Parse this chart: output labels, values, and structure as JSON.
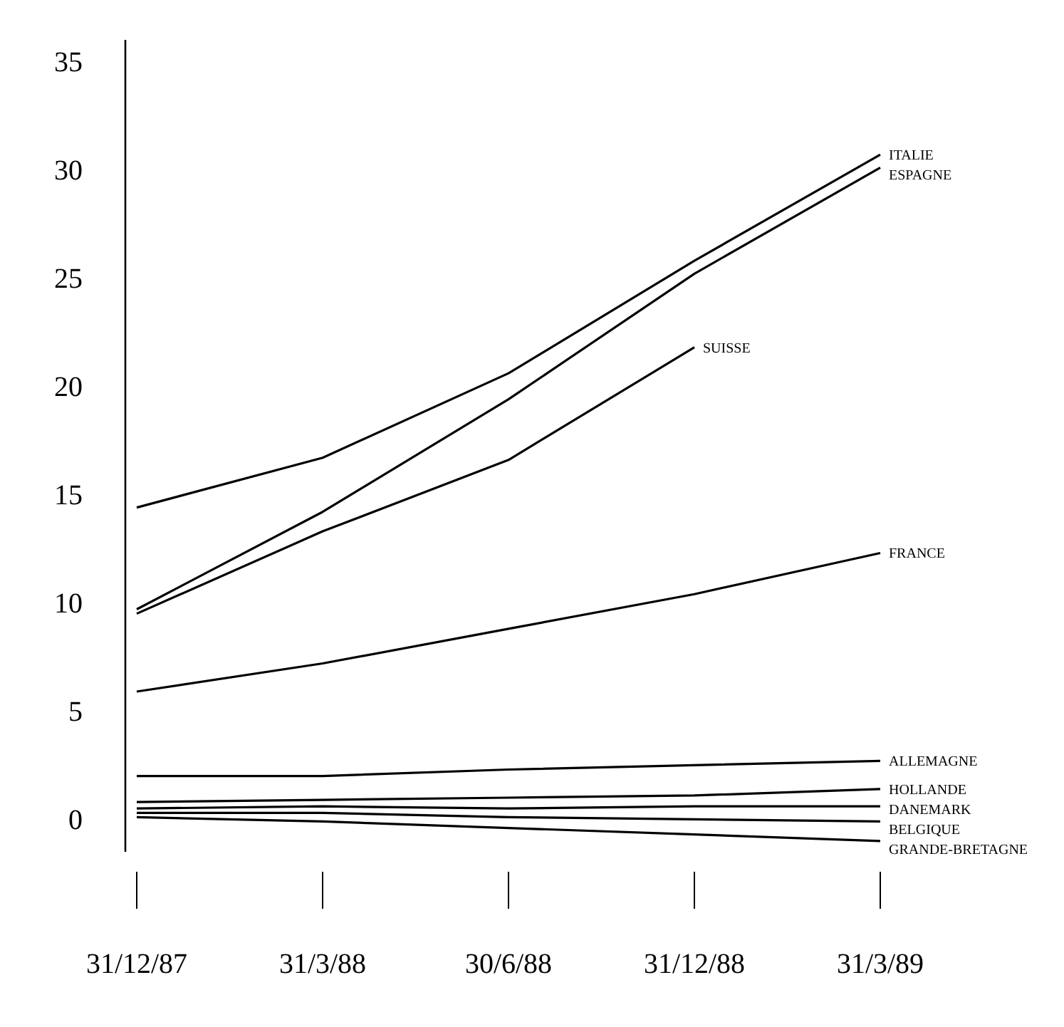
{
  "chart_data": {
    "type": "line",
    "categories": [
      "31/12/87",
      "31/3/88",
      "30/6/88",
      "31/12/88",
      "31/3/89"
    ],
    "ylim": [
      -1.5,
      36
    ],
    "yticks": [
      0,
      5,
      10,
      15,
      20,
      25,
      30,
      35
    ],
    "grid": false,
    "marker": "none",
    "line_style": "solid",
    "series": [
      {
        "name": "ITALIE",
        "color": "#000000",
        "values": [
          14.4,
          16.7,
          20.6,
          25.8,
          30.7
        ]
      },
      {
        "name": "ESPAGNE",
        "color": "#000000",
        "values": [
          9.7,
          14.2,
          19.4,
          25.2,
          30.1
        ]
      },
      {
        "name": "SUISSE",
        "color": "#000000",
        "values": [
          9.5,
          13.3,
          16.6,
          21.8,
          null
        ]
      },
      {
        "name": "FRANCE",
        "color": "#000000",
        "values": [
          5.9,
          7.2,
          8.8,
          10.4,
          12.3
        ]
      },
      {
        "name": "ALLEMAGNE",
        "color": "#000000",
        "values": [
          2.0,
          2.0,
          2.3,
          2.5,
          2.7
        ]
      },
      {
        "name": "HOLLANDE",
        "color": "#000000",
        "values": [
          0.8,
          0.9,
          1.0,
          1.1,
          1.4
        ]
      },
      {
        "name": "DANEMARK",
        "color": "#000000",
        "values": [
          0.5,
          0.6,
          0.5,
          0.6,
          0.6
        ]
      },
      {
        "name": "BELGIQUE",
        "color": "#000000",
        "values": [
          0.3,
          0.3,
          0.1,
          0.0,
          -0.1
        ]
      },
      {
        "name": "GRANDE-BRETAGNE",
        "color": "#000000",
        "values": [
          0.1,
          -0.1,
          -0.4,
          -0.7,
          -1.0
        ]
      }
    ]
  }
}
